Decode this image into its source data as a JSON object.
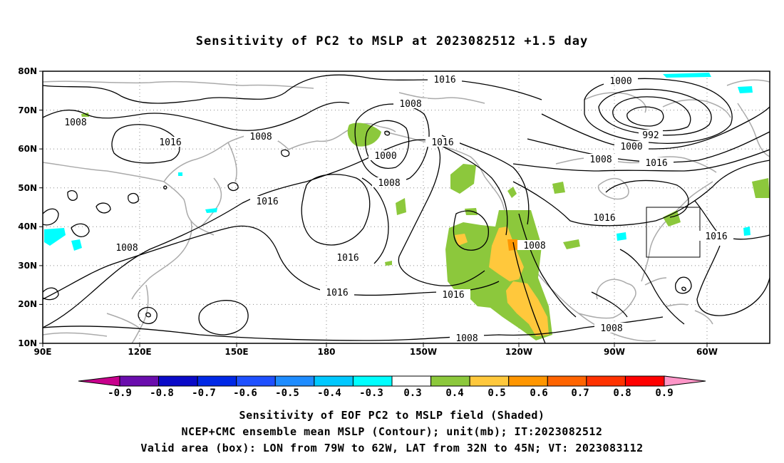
{
  "title": "Sensitivity of PC2 to MSLP at 2023082512 +1.5 day",
  "map": {
    "lat_labels": [
      "80N",
      "70N",
      "60N",
      "50N",
      "40N",
      "30N",
      "20N",
      "10N"
    ],
    "lon_labels": [
      "90E",
      "120E",
      "150E",
      "180",
      "150W",
      "120W",
      "90W",
      "60W"
    ],
    "contour_labels": [
      "1016",
      "1008",
      "1000",
      "1008",
      "1016",
      "1008",
      "1016",
      "1000",
      "992",
      "1008",
      "1000",
      "1008",
      "1016",
      "1016",
      "1016",
      "1016",
      "1008",
      "1016",
      "1016",
      "1008",
      "1008",
      "1008"
    ]
  },
  "colorbar": {
    "labels": [
      "-0.9",
      "-0.8",
      "-0.7",
      "-0.6",
      "-0.5",
      "-0.4",
      "-0.3",
      "0.3",
      "0.4",
      "0.5",
      "0.6",
      "0.7",
      "0.8",
      "0.9"
    ],
    "colors": [
      "#6a0dad",
      "#0a0ac8",
      "#0028e6",
      "#1e50ff",
      "#1e8cff",
      "#00c8ff",
      "#00ffff",
      "#ffffff",
      "#8cc83c",
      "#ffc83c",
      "#ff9600",
      "#ff6400",
      "#ff3200",
      "#ff0000"
    ],
    "low_tail_color": "#c8008c",
    "high_tail_color": "#ff96c8"
  },
  "captions": [
    "Sensitivity of EOF PC2 to MSLP field (Shaded)",
    "NCEP+CMC ensemble mean MSLP (Contour); unit(mb); IT:2023082512",
    "Valid area (box): LON from 79W to 62W, LAT from 32N to 45N; VT: 2023083112"
  ]
}
